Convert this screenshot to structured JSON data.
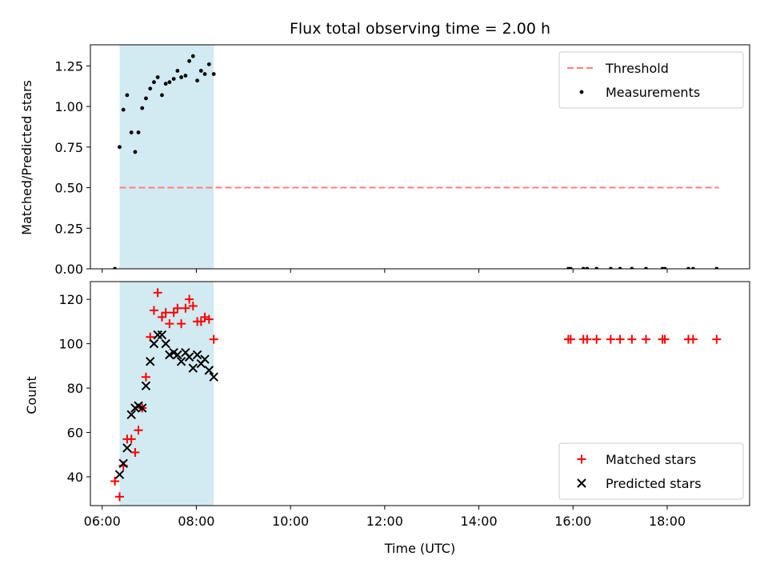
{
  "chart_data": {
    "title": "Flux total observing time = 2.00 h",
    "xlabel": "Time (UTC)",
    "x_unit": "hours UTC",
    "xlim": [
      5.75,
      19.75
    ],
    "xticks": [
      {
        "value": 6,
        "label": "06:00"
      },
      {
        "value": 8,
        "label": "08:00"
      },
      {
        "value": 10,
        "label": "10:00"
      },
      {
        "value": 12,
        "label": "12:00"
      },
      {
        "value": 14,
        "label": "14:00"
      },
      {
        "value": 16,
        "label": "16:00"
      },
      {
        "value": 18,
        "label": "18:00"
      }
    ],
    "highlight_span": {
      "x0": 6.37,
      "x1": 8.37,
      "color": "#add8e6"
    },
    "panels": [
      {
        "type": "scatter",
        "ylabel": "Matched/Predicted stars",
        "ylim": [
          0.0,
          1.38
        ],
        "yticks": [
          {
            "value": 0.0,
            "label": "0.00"
          },
          {
            "value": 0.25,
            "label": "0.25"
          },
          {
            "value": 0.5,
            "label": "0.50"
          },
          {
            "value": 0.75,
            "label": "0.75"
          },
          {
            "value": 1.0,
            "label": "1.00"
          },
          {
            "value": 1.25,
            "label": "1.25"
          }
        ],
        "legend_position": "top-right",
        "threshold": {
          "name": "Threshold",
          "value": 0.5,
          "x0": 6.37,
          "x1": 19.1,
          "color": "#ff7f7f"
        },
        "series": [
          {
            "name": "Measurements",
            "marker": "dot",
            "color": "#000000",
            "x": [
              6.27,
              6.37,
              6.45,
              6.53,
              6.62,
              6.7,
              6.77,
              6.85,
              6.93,
              7.02,
              7.1,
              7.18,
              7.27,
              7.35,
              7.43,
              7.52,
              7.6,
              7.68,
              7.77,
              7.85,
              7.93,
              8.02,
              8.1,
              8.18,
              8.27,
              8.37,
              15.9,
              15.95,
              16.22,
              16.3,
              16.5,
              16.8,
              17.0,
              17.25,
              17.55,
              17.9,
              17.95,
              18.45,
              18.55,
              19.05
            ],
            "y": [
              0.0,
              0.75,
              0.98,
              1.07,
              0.84,
              0.72,
              0.84,
              0.99,
              1.05,
              1.11,
              1.15,
              1.18,
              1.07,
              1.14,
              1.15,
              1.17,
              1.22,
              1.18,
              1.19,
              1.28,
              1.31,
              1.16,
              1.22,
              1.2,
              1.26,
              1.2,
              0.0,
              0.0,
              0.0,
              0.0,
              0.0,
              0.0,
              0.0,
              0.0,
              0.0,
              0.0,
              0.0,
              0.0,
              0.0,
              0.0
            ]
          }
        ]
      },
      {
        "type": "scatter",
        "ylabel": "Count",
        "ylim": [
          27,
          128
        ],
        "yticks": [
          {
            "value": 40,
            "label": "40"
          },
          {
            "value": 60,
            "label": "60"
          },
          {
            "value": 80,
            "label": "80"
          },
          {
            "value": 100,
            "label": "100"
          },
          {
            "value": 120,
            "label": "120"
          }
        ],
        "legend_position": "bottom-right",
        "series": [
          {
            "name": "Matched stars",
            "marker": "plus",
            "color": "#ff0000",
            "x": [
              6.27,
              6.37,
              6.45,
              6.53,
              6.62,
              6.7,
              6.77,
              6.85,
              6.93,
              7.02,
              7.1,
              7.18,
              7.27,
              7.35,
              7.43,
              7.52,
              7.6,
              7.68,
              7.77,
              7.85,
              7.93,
              8.02,
              8.1,
              8.18,
              8.27,
              8.37,
              15.9,
              15.95,
              16.22,
              16.3,
              16.5,
              16.8,
              17.0,
              17.25,
              17.55,
              17.9,
              17.95,
              18.45,
              18.55,
              19.05
            ],
            "y": [
              38,
              31,
              45,
              57,
              57,
              51,
              61,
              71,
              85,
              103,
              115,
              123,
              112,
              114,
              109,
              114,
              116,
              109,
              116,
              120,
              117,
              110,
              110,
              112,
              111,
              102,
              102,
              102,
              102,
              102,
              102,
              102,
              102,
              102,
              102,
              102,
              102,
              102,
              102,
              102
            ]
          },
          {
            "name": "Predicted stars",
            "marker": "x",
            "color": "#000000",
            "x": [
              6.37,
              6.45,
              6.53,
              6.62,
              6.7,
              6.77,
              6.85,
              6.93,
              7.02,
              7.1,
              7.18,
              7.27,
              7.35,
              7.43,
              7.52,
              7.6,
              7.68,
              7.77,
              7.85,
              7.93,
              8.02,
              8.1,
              8.18,
              8.27,
              8.37
            ],
            "y": [
              41,
              46,
              53,
              68,
              71,
              72,
              71,
              81,
              92,
              100,
              104,
              104,
              100,
              95,
              96,
              95,
              92,
              96,
              94,
              89,
              95,
              91,
              93,
              88,
              85
            ]
          }
        ]
      }
    ]
  }
}
